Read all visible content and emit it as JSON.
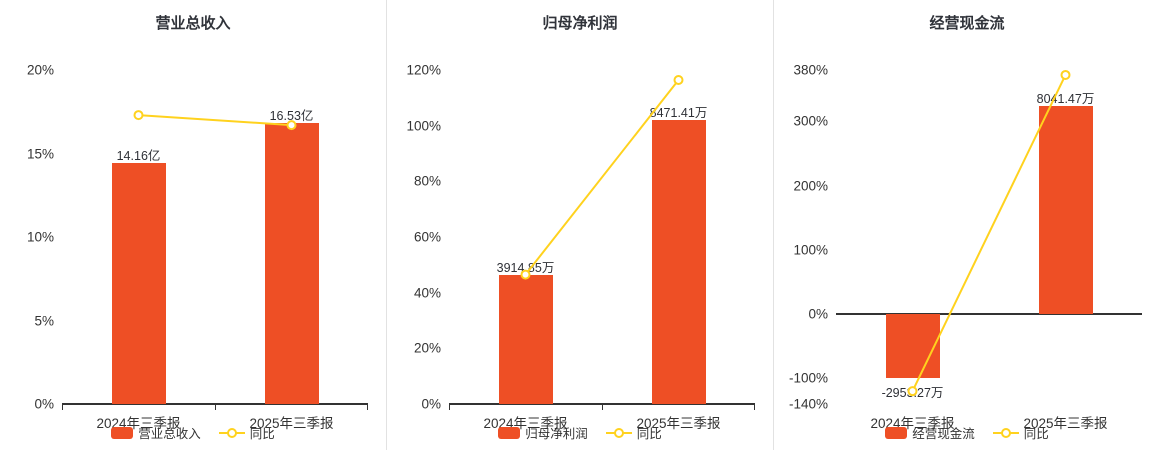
{
  "colors": {
    "bar": "#ee4f25",
    "line": "#ffd21e",
    "axis": "#333333",
    "text": "#333333",
    "divider": "#e2e2e2",
    "background": "#ffffff"
  },
  "chart_data": [
    {
      "type": "bar",
      "title": "营业总收入",
      "categories": [
        "2024年三季报",
        "2025年三季报"
      ],
      "bar_series": {
        "name": "营业总收入",
        "labels": [
          "14.16亿",
          "16.53亿"
        ],
        "plotted_values": [
          14.45,
          16.8
        ]
      },
      "line_series": {
        "name": "同比",
        "values": [
          17.3,
          16.7
        ]
      },
      "ylim": [
        0,
        20
      ],
      "yticks": [
        0,
        5,
        10,
        15,
        20
      ],
      "ytick_labels": [
        "0%",
        "5%",
        "10%",
        "15%",
        "20%"
      ],
      "legend": [
        "营业总收入",
        "同比"
      ],
      "legend_position": "bottom",
      "grid": false
    },
    {
      "type": "bar",
      "title": "归母净利润",
      "categories": [
        "2024年三季报",
        "2025年三季报"
      ],
      "bar_series": {
        "name": "归母净利润",
        "labels": [
          "3914.85万",
          "8471.41万"
        ],
        "plotted_values": [
          46.2,
          102.0
        ]
      },
      "line_series": {
        "name": "同比",
        "values": [
          46.5,
          116.4
        ]
      },
      "ylim": [
        0,
        120
      ],
      "yticks": [
        0,
        20,
        40,
        60,
        80,
        100,
        120
      ],
      "ytick_labels": [
        "0%",
        "20%",
        "40%",
        "60%",
        "80%",
        "100%",
        "120%"
      ],
      "legend": [
        "归母净利润",
        "同比"
      ],
      "legend_position": "bottom",
      "grid": false
    },
    {
      "type": "bar",
      "title": "经营现金流",
      "categories": [
        "2024年三季报",
        "2025年三季报"
      ],
      "bar_series": {
        "name": "经营现金流",
        "labels": [
          "-2953.27万",
          "8041.47万"
        ],
        "plotted_values": [
          -100,
          324
        ]
      },
      "line_series": {
        "name": "同比",
        "values": [
          -120,
          372.3
        ]
      },
      "ylim": [
        -140,
        380
      ],
      "yticks": [
        -140,
        -100,
        0,
        100,
        200,
        300,
        380
      ],
      "ytick_labels": [
        "-140%",
        "-100%",
        "0%",
        "100%",
        "200%",
        "300%",
        "380%"
      ],
      "legend": [
        "经营现金流",
        "同比"
      ],
      "legend_position": "bottom",
      "grid": false
    }
  ]
}
